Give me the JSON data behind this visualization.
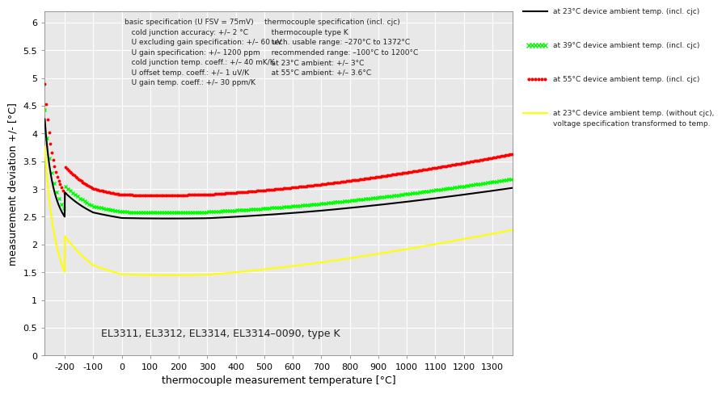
{
  "xlabel": "thermocouple measurement temperature [°C]",
  "ylabel": "measurement deviation +/- [°C]",
  "xlim": [
    -270,
    1372
  ],
  "ylim": [
    0,
    6.2
  ],
  "xticks": [
    -200,
    -100,
    0,
    100,
    200,
    300,
    400,
    500,
    600,
    700,
    800,
    900,
    1000,
    1100,
    1200,
    1300
  ],
  "yticks": [
    0,
    0.5,
    1,
    1.5,
    2,
    2.5,
    3,
    3.5,
    4,
    4.5,
    5,
    5.5,
    6
  ],
  "annotation": "EL3311, EL3312, EL3314, EL3314–0090, type K",
  "text_block1_title": "basic specification (U FSV = 75mV)",
  "text_block1_lines": [
    "   cold junction accuracy: +/– 2 °C",
    "   U excluding gain specification: +/– 60 uV",
    "   U gain specification: +/– 1200 ppm",
    "   cold junction temp. coeff.: +/– 40 mK/K",
    "   U offset temp. coeff.: +/– 1 uV/K",
    "   U gain temp. coeff.: +/– 30 ppm/K"
  ],
  "text_block2_title": "thermocouple specification (incl. cjc)",
  "text_block2_lines": [
    "   thermocouple type K",
    "   tech. usable range: –270°C to 1372°C",
    "   recommended range: –100°C to 1200°C",
    "   at 23°C ambient: +/– 3°C",
    "   at 55°C ambient: +/– 3.6°C"
  ],
  "legend_entries": [
    "at 23°C device ambient temp. (incl. cjc)",
    "at 39°C device ambient temp. (incl. cjc)",
    "at 55°C device ambient temp. (incl. cjc)",
    "at 23°C device ambient temp. (without cjc),",
    "voltage specification transformed to temp."
  ],
  "bg_color": "#e8e8e8",
  "grid_color": "white",
  "fig_bg": "white"
}
